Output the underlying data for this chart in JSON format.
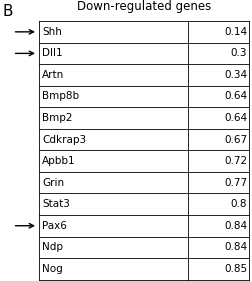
{
  "title": "Down-regulated genes",
  "genes": [
    "Shh",
    "Dll1",
    "Artn",
    "Bmp8b",
    "Bmp2",
    "Cdkrap3",
    "Apbb1",
    "Grin",
    "Stat3",
    "Pax6",
    "Ndp",
    "Nog"
  ],
  "values": [
    "0.14",
    "0.3",
    "0.34",
    "0.64",
    "0.64",
    "0.67",
    "0.72",
    "0.77",
    "0.8",
    "0.84",
    "0.84",
    "0.85"
  ],
  "arrows": [
    0,
    1,
    9
  ],
  "panel_label": "B",
  "bg_color": "#ffffff",
  "text_color": "#000000",
  "title_fontsize": 8.5,
  "gene_fontsize": 7.5,
  "value_fontsize": 7.5,
  "panel_fontsize": 11
}
